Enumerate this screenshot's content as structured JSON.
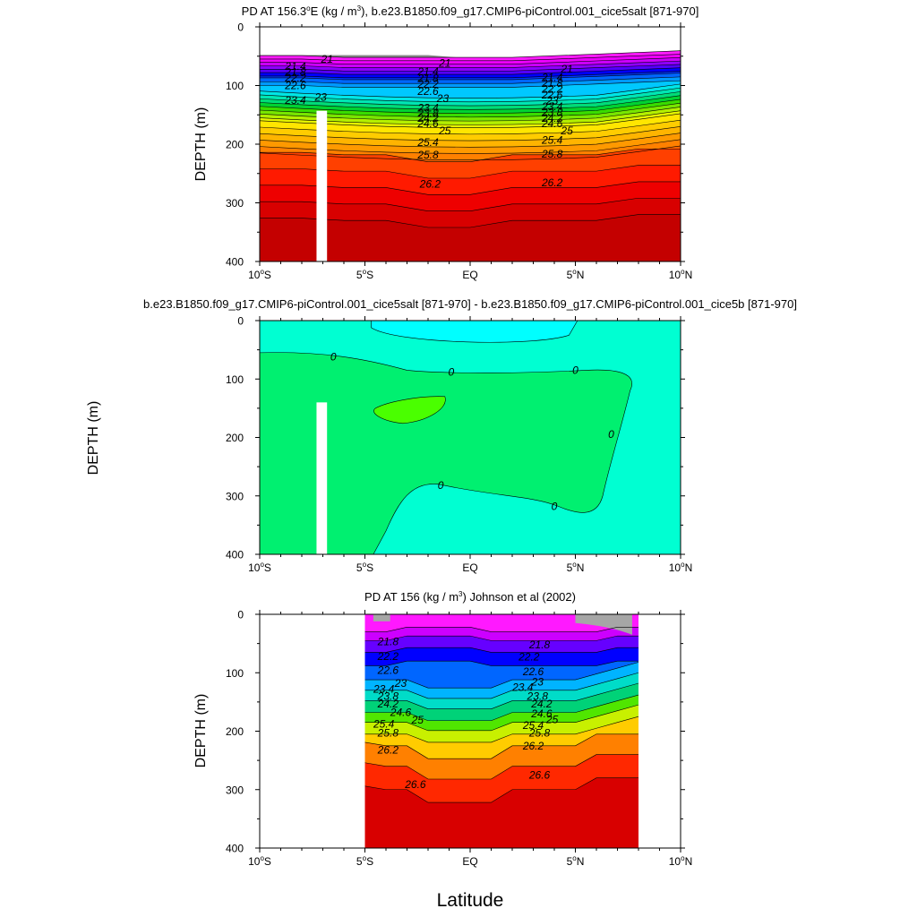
{
  "figure": {
    "xlabel": "Latitude",
    "panels_ylabel": "DEPTH (m)"
  },
  "chart_data": [
    {
      "type": "contour",
      "title_prefix": "PD AT 156.3",
      "title_degree": "o",
      "title_units_a": "E (kg / m",
      "title_units_sup": "3",
      "title_suffix": "), b.e23.B1850.f09_g17.CMIP6-piControl.001_cice5salt [871-970]",
      "ylabel": "DEPTH (m)",
      "ylim": [
        0,
        400
      ],
      "y_ticks": [
        0,
        100,
        200,
        300,
        400
      ],
      "xlim": [
        -10,
        10
      ],
      "x_ticks": [
        {
          "value": -10,
          "num": "10",
          "hemi": "S"
        },
        {
          "value": -5,
          "num": "5",
          "hemi": "S"
        },
        {
          "value": 0,
          "num": "EQ",
          "hemi": ""
        },
        {
          "value": 5,
          "num": "5",
          "hemi": "N"
        },
        {
          "value": 10,
          "num": "10",
          "hemi": "N"
        }
      ],
      "contour_levels": [
        21,
        21.2,
        21.4,
        21.6,
        21.8,
        22,
        22.2,
        22.4,
        22.6,
        22.8,
        23,
        23.2,
        23.4,
        23.6,
        23.8,
        24,
        24.2,
        24.4,
        24.6,
        24.8,
        25,
        25.2,
        25.4,
        25.6,
        25.8,
        26,
        26.2,
        26.4,
        26.6
      ],
      "level_labels": [
        {
          "text": "21",
          "lat": -6.8,
          "depth": 55
        },
        {
          "text": "21.4",
          "lat": -8.3,
          "depth": 67
        },
        {
          "text": "21.8",
          "lat": -8.3,
          "depth": 77
        },
        {
          "text": "22.2",
          "lat": -8.3,
          "depth": 87
        },
        {
          "text": "22.6",
          "lat": -8.3,
          "depth": 100
        },
        {
          "text": "23",
          "lat": -7.1,
          "depth": 120
        },
        {
          "text": "23.4",
          "lat": -8.3,
          "depth": 125
        },
        {
          "text": "21",
          "lat": -1.2,
          "depth": 62
        },
        {
          "text": "21.4",
          "lat": -2.0,
          "depth": 76
        },
        {
          "text": "21.8",
          "lat": -2.0,
          "depth": 88
        },
        {
          "text": "22.2",
          "lat": -2.0,
          "depth": 98
        },
        {
          "text": "22.6",
          "lat": -2.0,
          "depth": 110
        },
        {
          "text": "23",
          "lat": -1.3,
          "depth": 122
        },
        {
          "text": "23.4",
          "lat": -2.0,
          "depth": 138
        },
        {
          "text": "23.8",
          "lat": -2.0,
          "depth": 147
        },
        {
          "text": "24.2",
          "lat": -2.0,
          "depth": 156
        },
        {
          "text": "24.6",
          "lat": -2.0,
          "depth": 165
        },
        {
          "text": "25",
          "lat": -1.2,
          "depth": 177
        },
        {
          "text": "25.4",
          "lat": -2.0,
          "depth": 197
        },
        {
          "text": "25.8",
          "lat": -2.0,
          "depth": 218
        },
        {
          "text": "26.2",
          "lat": -1.9,
          "depth": 268
        },
        {
          "text": "21",
          "lat": 4.6,
          "depth": 72
        },
        {
          "text": "21.4",
          "lat": 3.9,
          "depth": 86
        },
        {
          "text": "21.8",
          "lat": 3.9,
          "depth": 96
        },
        {
          "text": "22.2",
          "lat": 3.9,
          "depth": 106
        },
        {
          "text": "22.6",
          "lat": 3.9,
          "depth": 116
        },
        {
          "text": "23",
          "lat": 3.9,
          "depth": 126
        },
        {
          "text": "23.4",
          "lat": 3.9,
          "depth": 136
        },
        {
          "text": "23.8",
          "lat": 3.9,
          "depth": 146
        },
        {
          "text": "24.2",
          "lat": 3.9,
          "depth": 156
        },
        {
          "text": "24.6",
          "lat": 3.9,
          "depth": 165
        },
        {
          "text": "25",
          "lat": 4.6,
          "depth": 177
        },
        {
          "text": "25.4",
          "lat": 3.9,
          "depth": 193
        },
        {
          "text": "25.8",
          "lat": 3.9,
          "depth": 217
        },
        {
          "text": "26.2",
          "lat": 3.9,
          "depth": 266
        }
      ],
      "missing_bar": {
        "lat_from": -7.3,
        "lat_to": -6.8,
        "depth_from": 143,
        "depth_to": 400
      }
    },
    {
      "type": "contour",
      "title": "b.e23.B1850.f09_g17.CMIP6-piControl.001_cice5salt [871-970] - b.e23.B1850.f09_g17.CMIP6-piControl.001_cice5b [871-970]",
      "ylabel": "DEPTH (m)",
      "ylim": [
        0,
        400
      ],
      "y_ticks": [
        0,
        100,
        200,
        300,
        400
      ],
      "xlim": [
        -10,
        10
      ],
      "contour_levels": [
        0
      ],
      "regions": [
        {
          "name": "near-zero negative",
          "color": "#00ffd2"
        },
        {
          "name": "shallow negative",
          "color": "#00ffff"
        },
        {
          "name": "small positive",
          "color": "#00f070"
        },
        {
          "name": "positive patch",
          "color": "#4aff00"
        }
      ],
      "level_labels": [
        {
          "text": "0",
          "lat": -6.5,
          "depth": 62
        },
        {
          "text": "0",
          "lat": -0.9,
          "depth": 88
        },
        {
          "text": "0",
          "lat": 5.0,
          "depth": 85
        },
        {
          "text": "0",
          "lat": 6.7,
          "depth": 195
        },
        {
          "text": "0",
          "lat": -1.4,
          "depth": 282
        },
        {
          "text": "0",
          "lat": 4.0,
          "depth": 318
        }
      ],
      "missing_bar": {
        "lat_from": -7.3,
        "lat_to": -6.8,
        "depth_from": 140,
        "depth_to": 400
      }
    },
    {
      "type": "contour",
      "title_prefix": "PD AT 156 (kg / m",
      "title_units_sup": "3",
      "title_suffix": ") Johnson et al (2002)",
      "ylabel": "DEPTH (m)",
      "ylim": [
        0,
        400
      ],
      "y_ticks": [
        0,
        100,
        200,
        300,
        400
      ],
      "xlim": [
        -10,
        10
      ],
      "data_extent_lat": [
        -5,
        8
      ],
      "contour_levels": [
        21.8,
        22.2,
        22.6,
        23,
        23.4,
        23.8,
        24.2,
        24.6,
        25,
        25.4,
        25.8,
        26.2,
        26.6
      ],
      "level_labels": [
        {
          "text": "21.8",
          "lat": -3.9,
          "depth": 47
        },
        {
          "text": "22.2",
          "lat": -3.9,
          "depth": 72
        },
        {
          "text": "22.6",
          "lat": -3.9,
          "depth": 96
        },
        {
          "text": "23",
          "lat": -3.3,
          "depth": 118
        },
        {
          "text": "23.4",
          "lat": -4.1,
          "depth": 128
        },
        {
          "text": "23.8",
          "lat": -3.9,
          "depth": 140
        },
        {
          "text": "24.2",
          "lat": -3.9,
          "depth": 153
        },
        {
          "text": "24.6",
          "lat": -3.3,
          "depth": 168
        },
        {
          "text": "25",
          "lat": -2.5,
          "depth": 181
        },
        {
          "text": "25.4",
          "lat": -4.1,
          "depth": 188
        },
        {
          "text": "25.8",
          "lat": -3.9,
          "depth": 203
        },
        {
          "text": "26.2",
          "lat": -3.9,
          "depth": 232
        },
        {
          "text": "26.6",
          "lat": -2.6,
          "depth": 291
        },
        {
          "text": "21.8",
          "lat": 3.3,
          "depth": 52
        },
        {
          "text": "22.2",
          "lat": 2.8,
          "depth": 73
        },
        {
          "text": "22.6",
          "lat": 3.0,
          "depth": 98
        },
        {
          "text": "23",
          "lat": 3.2,
          "depth": 116
        },
        {
          "text": "23.4",
          "lat": 2.5,
          "depth": 125
        },
        {
          "text": "23.8",
          "lat": 3.2,
          "depth": 140
        },
        {
          "text": "24.2",
          "lat": 3.4,
          "depth": 153
        },
        {
          "text": "24.6",
          "lat": 3.4,
          "depth": 170
        },
        {
          "text": "25",
          "lat": 3.9,
          "depth": 180
        },
        {
          "text": "25.4",
          "lat": 3.0,
          "depth": 190
        },
        {
          "text": "25.8",
          "lat": 3.3,
          "depth": 203
        },
        {
          "text": "26.2",
          "lat": 3.0,
          "depth": 225
        },
        {
          "text": "26.6",
          "lat": 3.3,
          "depth": 275
        }
      ]
    }
  ]
}
